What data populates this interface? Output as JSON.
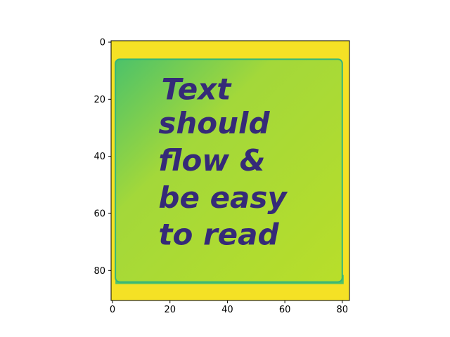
{
  "chart_data": {
    "type": "heatmap",
    "title": "",
    "xlabel": "",
    "ylabel": "",
    "xlim": [
      -0.5,
      82.5
    ],
    "ylim": [
      90.5,
      -0.5
    ],
    "y_inverted": true,
    "grid": false,
    "legend": "none",
    "x_ticks": [
      {
        "value": 0,
        "label": "0"
      },
      {
        "value": 20,
        "label": "20"
      },
      {
        "value": 40,
        "label": "40"
      },
      {
        "value": 60,
        "label": "60"
      },
      {
        "value": 80,
        "label": "80"
      }
    ],
    "y_ticks": [
      {
        "value": 0,
        "label": "0"
      },
      {
        "value": 20,
        "label": "20"
      },
      {
        "value": 40,
        "label": "40"
      },
      {
        "value": 60,
        "label": "60"
      },
      {
        "value": 80,
        "label": "80"
      }
    ],
    "colormap": {
      "name": "viridis",
      "low": "#440154",
      "mid_low": "#3b528b",
      "mid": "#21918c",
      "mid_high": "#5ec962",
      "high": "#fde725"
    },
    "image_content": {
      "background_color": "#f5e125",
      "note_color": "#b5dc2a",
      "note_shadow_color": "#4fc16a",
      "note_edge_color": "#33b57a",
      "text_color": "#352a78",
      "note_region": {
        "x0": 1,
        "x1": 80,
        "y0": 6,
        "y1": 84
      },
      "text_lines": [
        {
          "text": "Text",
          "x": 17,
          "y": 20
        },
        {
          "text": "should",
          "x": 16,
          "y": 32
        },
        {
          "text": "flow &",
          "x": 16,
          "y": 45
        },
        {
          "text": "be easy",
          "x": 16,
          "y": 58
        },
        {
          "text": "to read",
          "x": 16,
          "y": 71
        }
      ]
    }
  }
}
